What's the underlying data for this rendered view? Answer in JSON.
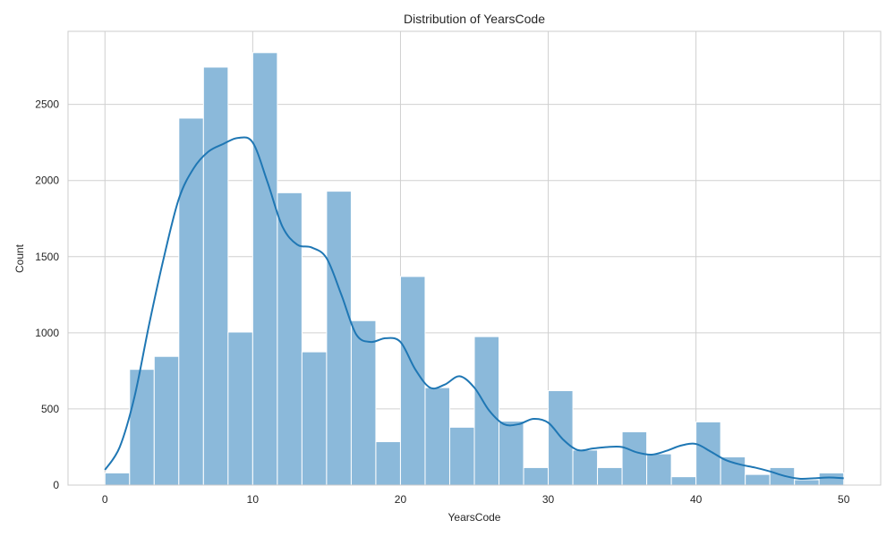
{
  "chart_data": {
    "type": "bar",
    "title": "Distribution of YearsCode",
    "xlabel": "YearsCode",
    "ylabel": "Count",
    "xlim": [
      -2.5,
      52.5
    ],
    "ylim": [
      0,
      2980
    ],
    "x_ticks": [
      0,
      10,
      20,
      30,
      40,
      50
    ],
    "y_ticks": [
      0,
      500,
      1000,
      1500,
      2000,
      2500
    ],
    "grid": true,
    "legend": "none",
    "bin_edges": [
      0,
      1.667,
      3.333,
      5,
      6.667,
      8.333,
      10,
      11.667,
      13.333,
      15,
      16.667,
      18.333,
      20,
      21.667,
      23.333,
      25,
      26.667,
      28.333,
      30,
      31.667,
      33.333,
      35,
      36.667,
      38.333,
      40,
      41.667,
      43.333,
      45,
      46.667,
      48.333,
      50
    ],
    "counts": [
      80,
      760,
      845,
      2410,
      2745,
      1005,
      2840,
      1920,
      875,
      1930,
      1080,
      285,
      1370,
      640,
      380,
      975,
      420,
      115,
      620,
      230,
      115,
      350,
      205,
      55,
      415,
      185,
      70,
      115,
      35,
      80
    ],
    "kde": {
      "x": [
        0,
        1,
        2,
        3,
        4,
        5,
        6,
        7,
        8,
        9,
        10,
        11,
        12,
        13,
        14,
        15,
        16,
        17,
        18,
        19,
        20,
        21,
        22,
        23,
        24,
        25,
        26,
        27,
        28,
        29,
        30,
        31,
        32,
        33,
        34,
        35,
        36,
        37,
        38,
        39,
        40,
        41,
        42,
        43,
        44,
        45,
        46,
        47,
        48,
        49,
        50
      ],
      "y": [
        100,
        250,
        580,
        1060,
        1500,
        1880,
        2080,
        2190,
        2240,
        2280,
        2250,
        1990,
        1700,
        1580,
        1560,
        1490,
        1250,
        990,
        940,
        965,
        940,
        760,
        640,
        660,
        715,
        640,
        490,
        400,
        400,
        435,
        410,
        300,
        230,
        240,
        250,
        250,
        215,
        200,
        225,
        260,
        270,
        220,
        165,
        135,
        115,
        90,
        60,
        42,
        45,
        50,
        45
      ]
    },
    "colors": {
      "bar": "#8bb9da",
      "bar_edge": "#ffffff",
      "kde": "#1f77b4",
      "grid": "#d0d0d0"
    }
  }
}
